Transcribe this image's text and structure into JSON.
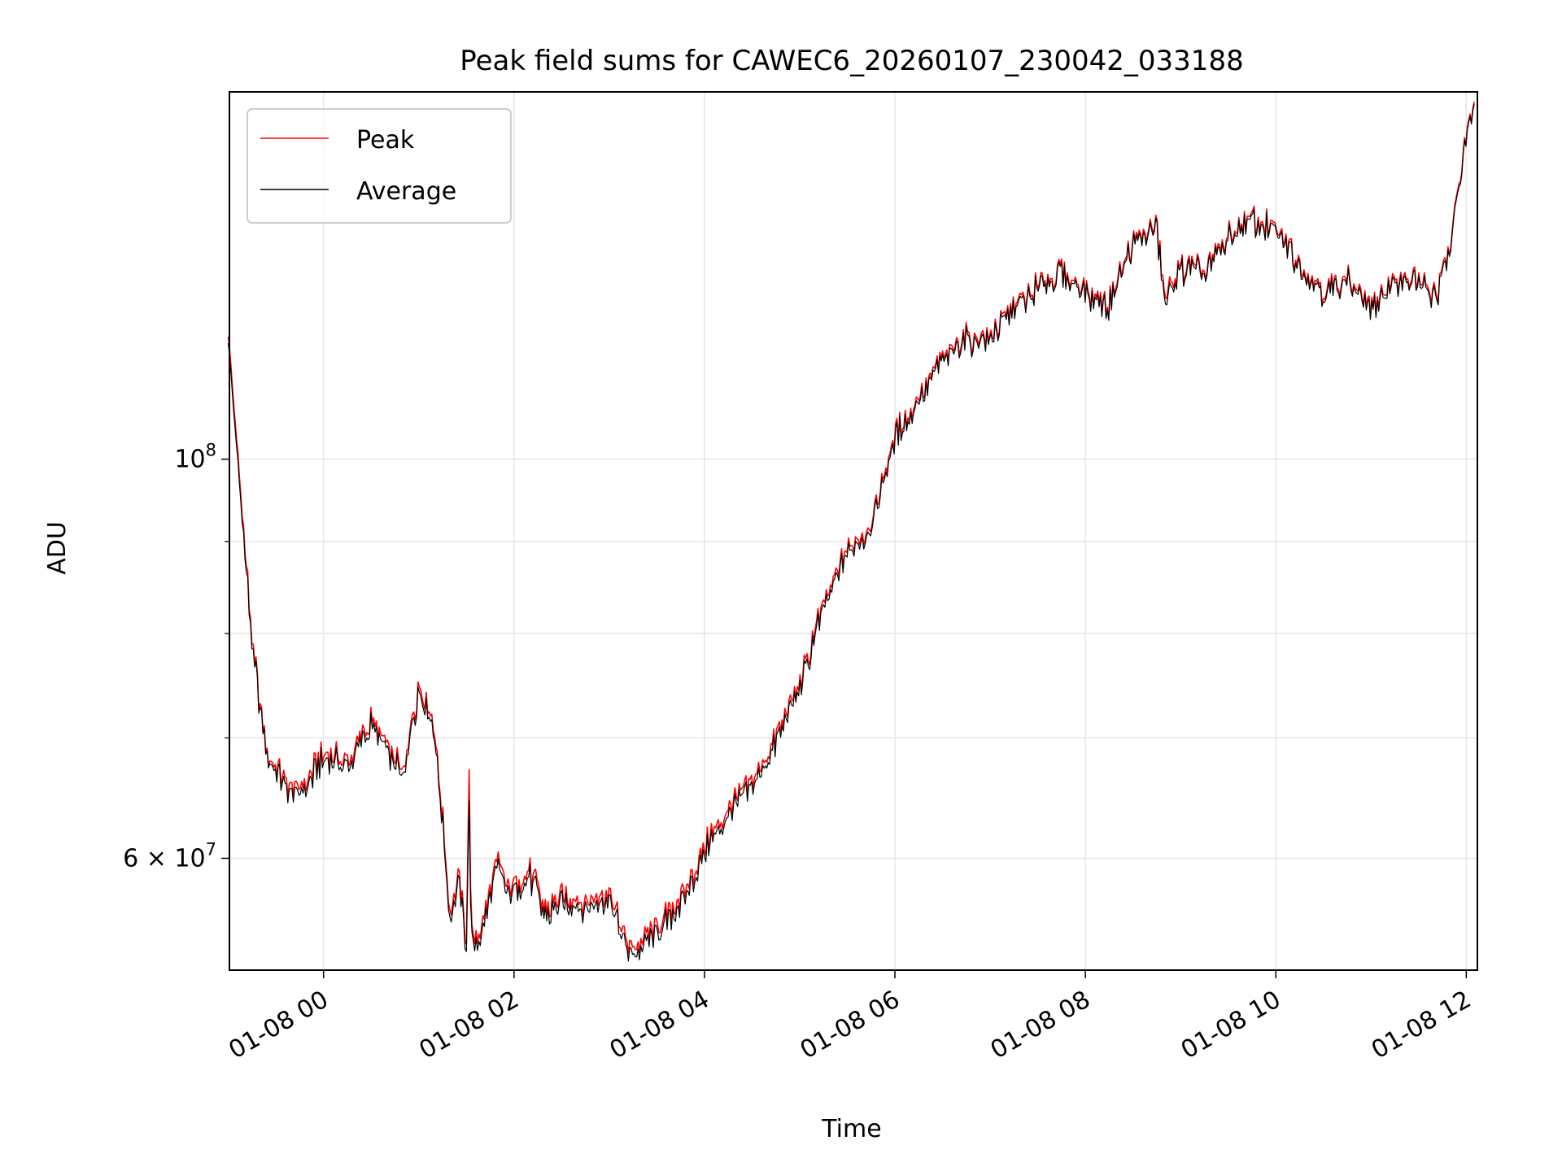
{
  "chart_data": {
    "type": "line",
    "title": "Peak field sums for CAWEC6_20260107_230042_033188",
    "xlabel": "Time",
    "ylabel": "ADU",
    "y_scale": "log",
    "xlim": [
      "2026-01-07 23:00:42",
      "2026-01-08 12:07:00"
    ],
    "ylim": [
      52000000,
      160000000
    ],
    "x_ticks": [
      "01-08 00",
      "01-08 02",
      "01-08 04",
      "01-08 06",
      "01-08 08",
      "01-08 10",
      "01-08 12"
    ],
    "x_tick_times": [
      "2026-01-08 00:00",
      "2026-01-08 02:00",
      "2026-01-08 04:00",
      "2026-01-08 06:00",
      "2026-01-08 08:00",
      "2026-01-08 10:00",
      "2026-01-08 12:00"
    ],
    "y_tick_labels": [
      {
        "value": 100000000,
        "base": "10",
        "exp": "8"
      },
      {
        "value": 60000000,
        "base": "6 × 10",
        "exp": "7"
      }
    ],
    "y_minor_ticks": [
      70000000,
      80000000,
      90000000
    ],
    "grid": true,
    "legend": "top-left",
    "series": [
      {
        "name": "Peak",
        "color": "#ff0000",
        "x": [
          "2026-01-07 23:00",
          "2026-01-07 23:05",
          "2026-01-07 23:15",
          "2026-01-07 23:25",
          "2026-01-07 23:35",
          "2026-01-07 23:45",
          "2026-01-08 00:00",
          "2026-01-08 00:15",
          "2026-01-08 00:30",
          "2026-01-08 00:40",
          "2026-01-08 00:50",
          "2026-01-08 01:00",
          "2026-01-08 01:10",
          "2026-01-08 01:20",
          "2026-01-08 01:25",
          "2026-01-08 01:30",
          "2026-01-08 01:32",
          "2026-01-08 01:33",
          "2026-01-08 01:40",
          "2026-01-08 01:50",
          "2026-01-08 01:55",
          "2026-01-08 02:10",
          "2026-01-08 02:20",
          "2026-01-08 02:30",
          "2026-01-08 02:45",
          "2026-01-08 03:00",
          "2026-01-08 03:10",
          "2026-01-08 03:15",
          "2026-01-08 03:30",
          "2026-01-08 03:45",
          "2026-01-08 04:00",
          "2026-01-08 04:15",
          "2026-01-08 04:30",
          "2026-01-08 04:45",
          "2026-01-08 05:00",
          "2026-01-08 05:15",
          "2026-01-08 05:30",
          "2026-01-08 05:45",
          "2026-01-08 06:00",
          "2026-01-08 06:15",
          "2026-01-08 06:30",
          "2026-01-08 06:45",
          "2026-01-08 07:00",
          "2026-01-08 07:15",
          "2026-01-08 07:30",
          "2026-01-08 07:45",
          "2026-01-08 08:00",
          "2026-01-08 08:15",
          "2026-01-08 08:30",
          "2026-01-08 08:45",
          "2026-01-08 08:50",
          "2026-01-08 09:00",
          "2026-01-08 09:15",
          "2026-01-08 09:30",
          "2026-01-08 09:45",
          "2026-01-08 10:00",
          "2026-01-08 10:15",
          "2026-01-08 10:30",
          "2026-01-08 10:45",
          "2026-01-08 11:00",
          "2026-01-08 11:10",
          "2026-01-08 11:20",
          "2026-01-08 11:30",
          "2026-01-08 11:40",
          "2026-01-08 11:45",
          "2026-01-08 11:50",
          "2026-01-08 11:55",
          "2026-01-08 12:00",
          "2026-01-08 12:05"
        ],
        "values": [
          118000000,
          103000000,
          79000000,
          68000000,
          66500000,
          65500000,
          68500000,
          68000000,
          71500000,
          69000000,
          67000000,
          75000000,
          71000000,
          56000000,
          59000000,
          54000000,
          69000000,
          54000000,
          55000000,
          60000000,
          58000000,
          59000000,
          56000000,
          57000000,
          57000000,
          57500000,
          54000000,
          53500000,
          55000000,
          57000000,
          61000000,
          64000000,
          66000000,
          70000000,
          75000000,
          83000000,
          89000000,
          92000000,
          103000000,
          108000000,
          114000000,
          117000000,
          117000000,
          122000000,
          125000000,
          127000000,
          124000000,
          122000000,
          132000000,
          135000000,
          122000000,
          128000000,
          127000000,
          133000000,
          136000000,
          134000000,
          129000000,
          124000000,
          126000000,
          121000000,
          125000000,
          126000000,
          126000000,
          123000000,
          127000000,
          132000000,
          142000000,
          152000000,
          158000000
        ]
      },
      {
        "name": "Average",
        "color": "#000000",
        "x": [
          "2026-01-07 23:00",
          "2026-01-07 23:05",
          "2026-01-07 23:15",
          "2026-01-07 23:25",
          "2026-01-07 23:35",
          "2026-01-07 23:45",
          "2026-01-08 00:00",
          "2026-01-08 00:15",
          "2026-01-08 00:30",
          "2026-01-08 00:40",
          "2026-01-08 00:50",
          "2026-01-08 01:00",
          "2026-01-08 01:10",
          "2026-01-08 01:20",
          "2026-01-08 01:25",
          "2026-01-08 01:30",
          "2026-01-08 01:32",
          "2026-01-08 01:33",
          "2026-01-08 01:40",
          "2026-01-08 01:50",
          "2026-01-08 01:55",
          "2026-01-08 02:10",
          "2026-01-08 02:20",
          "2026-01-08 02:30",
          "2026-01-08 02:45",
          "2026-01-08 03:00",
          "2026-01-08 03:10",
          "2026-01-08 03:15",
          "2026-01-08 03:30",
          "2026-01-08 03:45",
          "2026-01-08 04:00",
          "2026-01-08 04:15",
          "2026-01-08 04:30",
          "2026-01-08 04:45",
          "2026-01-08 05:00",
          "2026-01-08 05:15",
          "2026-01-08 05:30",
          "2026-01-08 05:45",
          "2026-01-08 06:00",
          "2026-01-08 06:15",
          "2026-01-08 06:30",
          "2026-01-08 06:45",
          "2026-01-08 07:00",
          "2026-01-08 07:15",
          "2026-01-08 07:30",
          "2026-01-08 07:45",
          "2026-01-08 08:00",
          "2026-01-08 08:15",
          "2026-01-08 08:30",
          "2026-01-08 08:45",
          "2026-01-08 08:50",
          "2026-01-08 09:00",
          "2026-01-08 09:15",
          "2026-01-08 09:30",
          "2026-01-08 09:45",
          "2026-01-08 10:00",
          "2026-01-08 10:15",
          "2026-01-08 10:30",
          "2026-01-08 10:45",
          "2026-01-08 11:00",
          "2026-01-08 11:10",
          "2026-01-08 11:20",
          "2026-01-08 11:30",
          "2026-01-08 11:40",
          "2026-01-08 11:45",
          "2026-01-08 11:50",
          "2026-01-08 11:55",
          "2026-01-08 12:00",
          "2026-01-08 12:05"
        ],
        "values": [
          117000000,
          102000000,
          78500000,
          67800000,
          66000000,
          65000000,
          68000000,
          67500000,
          71000000,
          68500000,
          66500000,
          74500000,
          70500000,
          55500000,
          58500000,
          53500000,
          66000000,
          53500000,
          54500000,
          59500000,
          57500000,
          58500000,
          55500000,
          56500000,
          56500000,
          57000000,
          53500000,
          53000000,
          54500000,
          56500000,
          60500000,
          63500000,
          65500000,
          69500000,
          74500000,
          82500000,
          88500000,
          91500000,
          102500000,
          107500000,
          113500000,
          116500000,
          116500000,
          121500000,
          124500000,
          126500000,
          123500000,
          121500000,
          131500000,
          134500000,
          121000000,
          127500000,
          126500000,
          132500000,
          135500000,
          133500000,
          128500000,
          123500000,
          125500000,
          120500000,
          124500000,
          125500000,
          125500000,
          122500000,
          126500000,
          131500000,
          141500000,
          151500000,
          157500000
        ]
      }
    ]
  }
}
